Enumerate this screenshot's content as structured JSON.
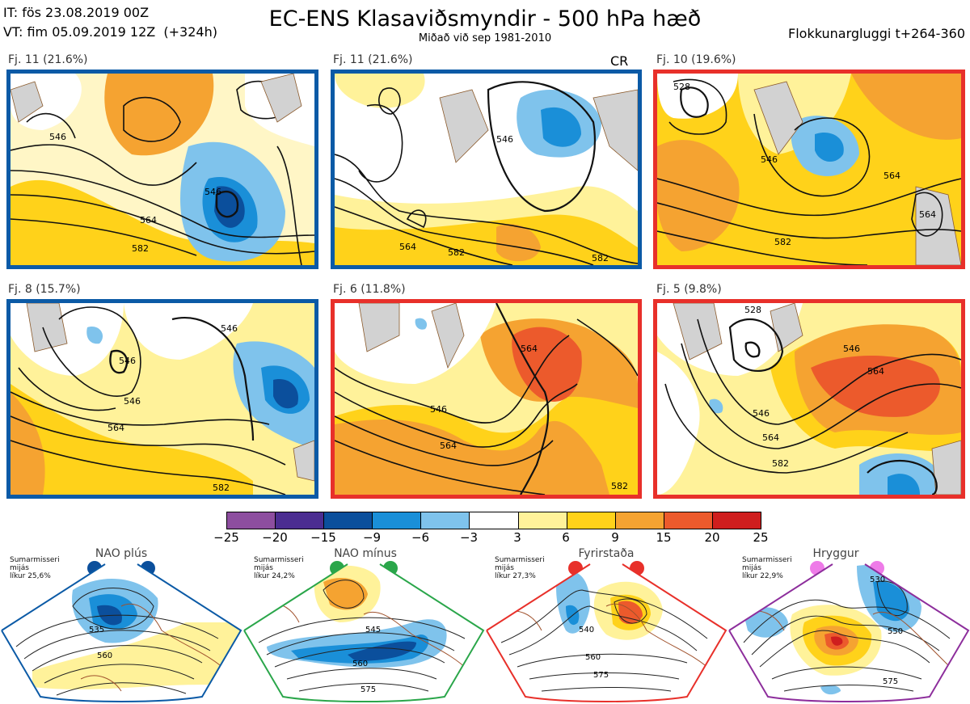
{
  "header": {
    "it_line": "IT: fös 23.08.2019 00Z",
    "vt_line": "VT: fim 05.09.2019 12Z  (+324h)",
    "title": "EC-ENS Klasaviðsmyndir - 500 hPa hæð",
    "subtitle": "Miðað við sep 1981-2010",
    "window": "Flokkunargluggi t+264-360"
  },
  "panels": [
    {
      "label": "Fj. 11 (21.6%)",
      "frame_color": "#0b5aa6",
      "contours": [
        "546",
        "546",
        "564",
        "582"
      ],
      "tag": ""
    },
    {
      "label": "Fj. 11 (21.6%)",
      "frame_color": "#0b5aa6",
      "contours": [
        "546",
        "564",
        "582",
        "582"
      ],
      "tag": "CR"
    },
    {
      "label": "Fj. 10 (19.6%)",
      "frame_color": "#e8302a",
      "contours": [
        "528",
        "546",
        "564",
        "564",
        "582"
      ],
      "tag": ""
    },
    {
      "label": "Fj. 8 (15.7%)",
      "frame_color": "#0b5aa6",
      "contours": [
        "546",
        "546",
        "546",
        "564",
        "582"
      ],
      "tag": ""
    },
    {
      "label": "Fj. 6 (11.8%)",
      "frame_color": "#e8302a",
      "contours": [
        "546",
        "564",
        "564",
        "582"
      ],
      "tag": ""
    },
    {
      "label": "Fj. 5 (9.8%)",
      "frame_color": "#e8302a",
      "contours": [
        "528",
        "546",
        "564",
        "546",
        "564",
        "582"
      ],
      "tag": ""
    }
  ],
  "colorbar": {
    "ticks": [
      "−25",
      "−20",
      "−15",
      "−9",
      "−6",
      "−3",
      "3",
      "6",
      "9",
      "15",
      "20",
      "25"
    ],
    "colors": [
      "#8d4e9f",
      "#4b2d91",
      "#0b4f9c",
      "#1a8fd8",
      "#7fc3ec",
      "#ffffff",
      "#fff29a",
      "#ffd21a",
      "#f5a331",
      "#ec5a2c",
      "#cf1e1e"
    ]
  },
  "regimes": [
    {
      "title": "NAO plús",
      "season": "Sumarmisseri",
      "center": "mijás",
      "prob": "líkur 25,6%",
      "dot_color": "#0b4f9c",
      "frame_color": "#0b5aa6",
      "contours": [
        "535",
        "560"
      ]
    },
    {
      "title": "NAO mínus",
      "season": "Sumarmisseri",
      "center": "mijás",
      "prob": "líkur 24,2%",
      "dot_color": "#2aa64a",
      "frame_color": "#2aa64a",
      "contours": [
        "545",
        "560",
        "575"
      ]
    },
    {
      "title": "Fyrirstaða",
      "season": "Sumarmisseri",
      "center": "mijás",
      "prob": "líkur 27,3%",
      "dot_color": "#e8302a",
      "frame_color": "#e8302a",
      "contours": [
        "540",
        "560",
        "575"
      ]
    },
    {
      "title": "Hryggur",
      "season": "Sumarmisseri",
      "center": "mijás",
      "prob": "líkur 22,9%",
      "dot_color": "#ee7be8",
      "frame_color": "#8d2e9c",
      "contours": [
        "530",
        "550",
        "575"
      ]
    }
  ]
}
